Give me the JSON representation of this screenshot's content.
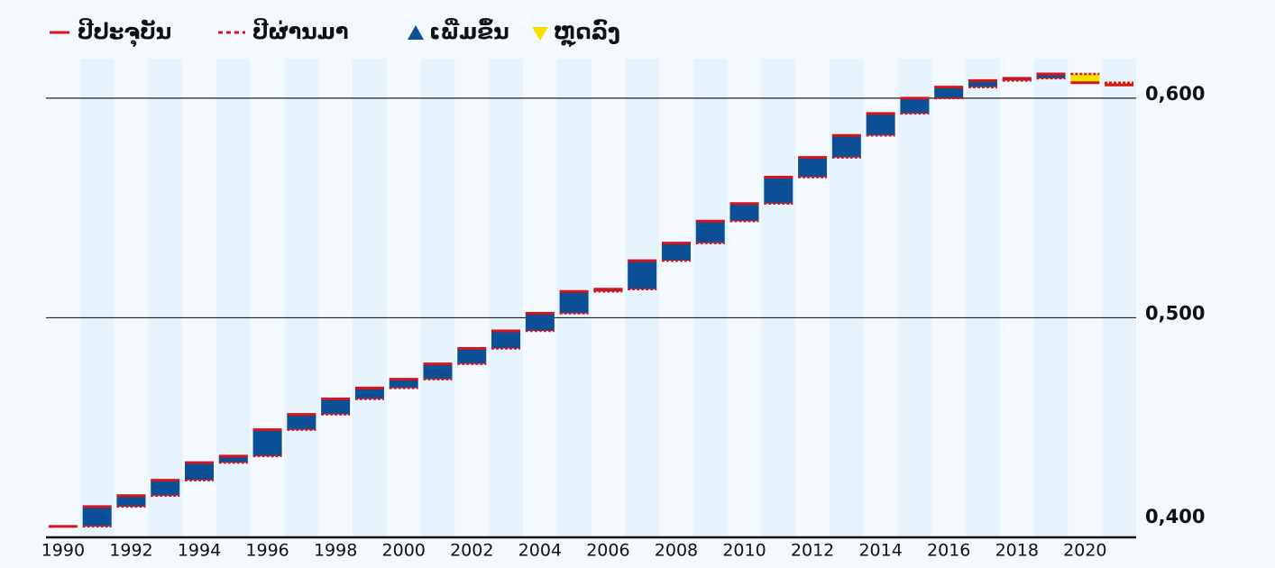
{
  "chart_data": {
    "type": "waterfall",
    "legend": {
      "current": "ປີປະຈຸບັນ",
      "previous": "ປີຜ່ານມາ",
      "increase": "ເພີ່ມຂຶ້ນ",
      "decrease": "ຫຼຸດລົງ"
    },
    "colors": {
      "current": "#d7141a",
      "previous": "#d7141a",
      "increase": "#0b4f96",
      "decrease": "#f5e100"
    },
    "categories": [
      "1990",
      null,
      "1992",
      null,
      "1994",
      null,
      "1996",
      null,
      "1998",
      null,
      "2000",
      null,
      "2002",
      null,
      "2004",
      null,
      "2006",
      null,
      "2008",
      null,
      "2010",
      null,
      "2012",
      null,
      "2014",
      null,
      "2016",
      null,
      "2018",
      null,
      "2020",
      null
    ],
    "values": [
      0.405,
      0.414,
      0.419,
      0.426,
      0.434,
      0.437,
      0.449,
      0.456,
      0.463,
      0.468,
      0.472,
      0.479,
      0.486,
      0.494,
      0.502,
      0.512,
      0.513,
      0.526,
      0.534,
      0.544,
      0.552,
      0.564,
      0.573,
      0.583,
      0.593,
      0.6,
      0.605,
      0.608,
      0.609,
      0.611,
      0.607,
      0.606
    ],
    "ylim": [
      0.4,
      0.618
    ],
    "yticks": [
      {
        "value": 0.4,
        "label": "0,400"
      },
      {
        "value": 0.5,
        "label": "0,500"
      },
      {
        "value": 0.6,
        "label": "0,600"
      }
    ],
    "grid": true
  }
}
